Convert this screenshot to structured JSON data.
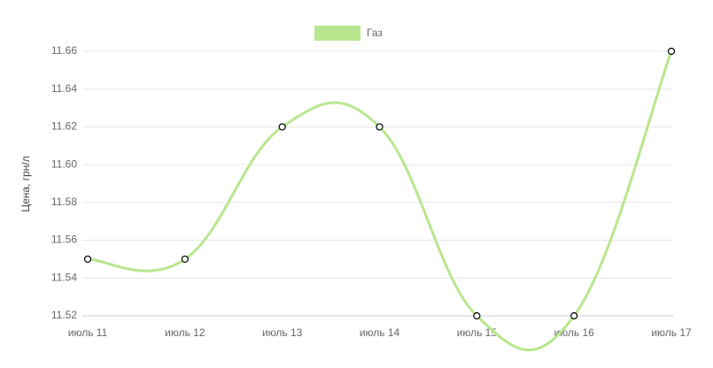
{
  "chart_data": {
    "type": "line",
    "y_label": "Цена, грн/л",
    "categories": [
      "июль 11",
      "июль 12",
      "июль 13",
      "июль 14",
      "июль 15",
      "июль 16",
      "июль 17"
    ],
    "series": [
      {
        "name": "Газ",
        "color": "#b8e68e",
        "values": [
          11.55,
          11.55,
          11.62,
          11.62,
          11.52,
          11.52,
          11.66
        ]
      }
    ],
    "ylim": [
      11.52,
      11.66
    ],
    "yticks": [
      11.52,
      11.54,
      11.56,
      11.58,
      {
        "value": 11.6,
        "label": "11.60"
      },
      11.62,
      11.64,
      11.66
    ],
    "grid": true
  }
}
